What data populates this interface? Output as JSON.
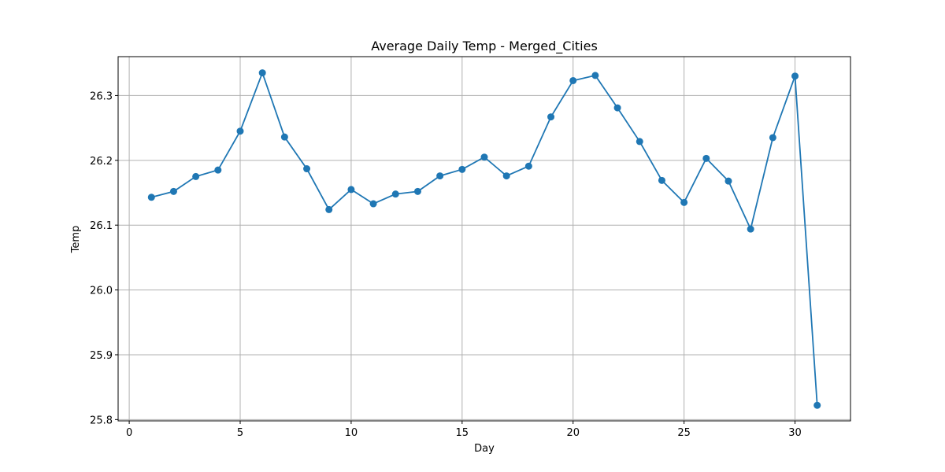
{
  "chart_data": {
    "type": "line",
    "title": "Average Daily Temp - Merged_Cities",
    "xlabel": "Day",
    "ylabel": "Temp",
    "xlim": [
      -0.5,
      32.5
    ],
    "ylim": [
      25.798,
      26.36
    ],
    "xticks": [
      0,
      5,
      10,
      15,
      20,
      25,
      30
    ],
    "xtick_labels": [
      "0",
      "5",
      "10",
      "15",
      "20",
      "25",
      "30"
    ],
    "yticks": [
      25.8,
      25.9,
      26.0,
      26.1,
      26.2,
      26.3
    ],
    "ytick_labels": [
      "25.8",
      "25.9",
      "26.0",
      "26.1",
      "26.2",
      "26.3"
    ],
    "grid": true,
    "marker": "circle",
    "color": "#1f77b4",
    "x": [
      1,
      2,
      3,
      4,
      5,
      6,
      7,
      8,
      9,
      10,
      11,
      12,
      13,
      14,
      15,
      16,
      17,
      18,
      19,
      20,
      21,
      22,
      23,
      24,
      25,
      26,
      27,
      28,
      29,
      30,
      31
    ],
    "y": [
      26.143,
      26.152,
      26.175,
      26.185,
      26.245,
      26.335,
      26.236,
      26.187,
      26.124,
      26.155,
      26.133,
      26.148,
      26.152,
      26.176,
      26.186,
      26.205,
      26.176,
      26.191,
      26.267,
      26.323,
      26.331,
      26.281,
      26.229,
      26.169,
      26.135,
      26.203,
      26.168,
      26.094,
      26.235,
      26.33,
      25.822
    ]
  }
}
